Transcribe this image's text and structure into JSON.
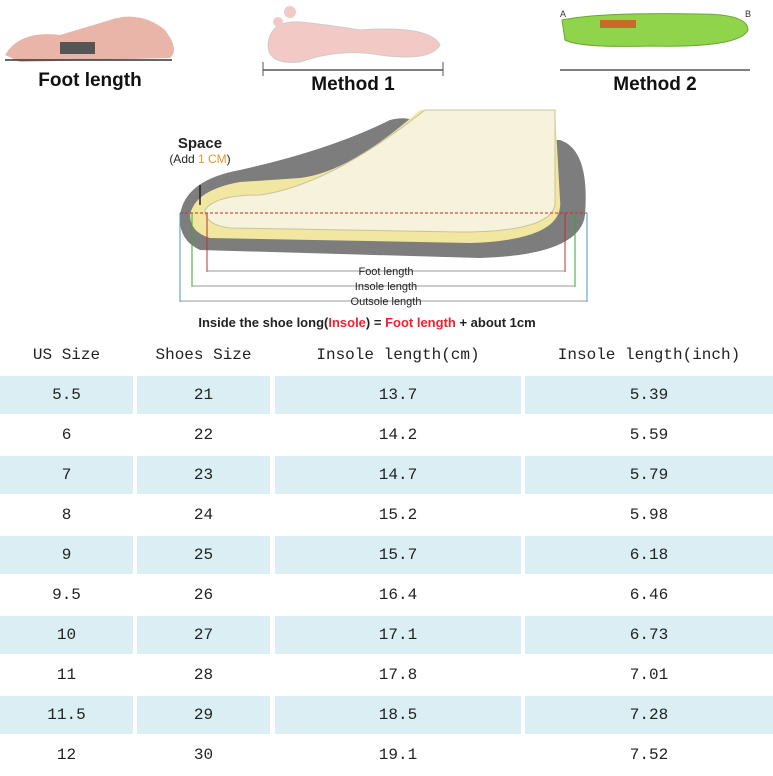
{
  "illustration": {
    "panels": [
      "Foot length",
      "Method 1",
      "Method 2"
    ],
    "insole_points": [
      "A",
      "B"
    ],
    "space_label": "Space",
    "space_note": [
      "(Add ",
      "1 CM",
      ")"
    ],
    "measure_labels": [
      "Foot length",
      "Insole length",
      "Outsole length"
    ],
    "caption": [
      "Inside the shoe long(",
      "Insole",
      ") = ",
      "Foot length",
      " + about 1cm"
    ]
  },
  "table": {
    "header": [
      "US Size",
      "Shoes Size",
      "Insole length(cm)",
      "Insole length(inch)"
    ],
    "rows": [
      [
        "5.5",
        "21",
        "13.7",
        "5.39"
      ],
      [
        "6",
        "22",
        "14.2",
        "5.59"
      ],
      [
        "7",
        "23",
        "14.7",
        "5.79"
      ],
      [
        "8",
        "24",
        "15.2",
        "5.98"
      ],
      [
        "9",
        "25",
        "15.7",
        "6.18"
      ],
      [
        "9.5",
        "26",
        "16.4",
        "6.46"
      ],
      [
        "10",
        "27",
        "17.1",
        "6.73"
      ],
      [
        "11",
        "28",
        "17.8",
        "7.01"
      ],
      [
        "11.5",
        "29",
        "18.5",
        "7.28"
      ],
      [
        "12",
        "30",
        "19.1",
        "7.52"
      ]
    ]
  }
}
